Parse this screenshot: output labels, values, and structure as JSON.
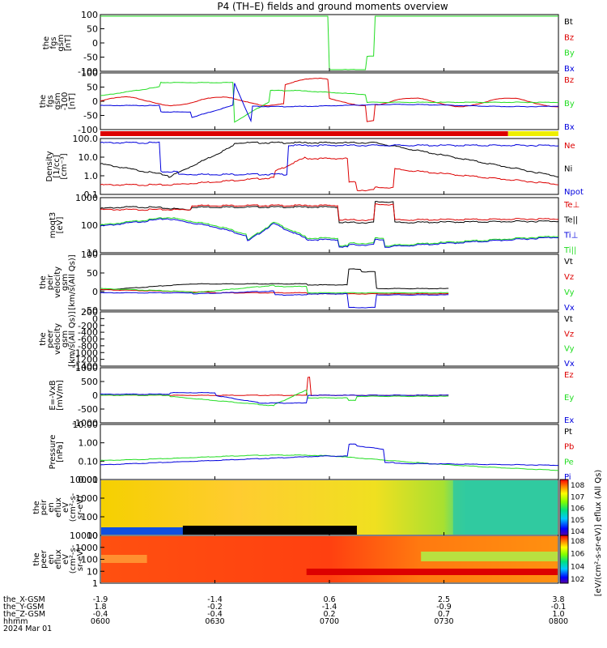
{
  "title": "P4 (TH–E) fields and ground moments overview",
  "colors": {
    "black": "#000000",
    "red": "#dd0000",
    "green": "#22dd22",
    "blue": "#0000dd",
    "yellow": "#eeee00",
    "gray": "#888888"
  },
  "chart_data": {
    "type": "line",
    "x_range": [
      "06:00",
      "08:00"
    ],
    "time_ticks": [
      "0600",
      "0630",
      "0700",
      "0730",
      "0800"
    ],
    "panels": [
      {
        "id": "p1",
        "ylabel": [
          "the",
          "fgs",
          "gsm",
          "[nT]"
        ],
        "ylim": [
          -100,
          100
        ],
        "ticks": [
          "100",
          "50",
          "0",
          "-50",
          "-100"
        ],
        "legend": [
          {
            "text": "Bt",
            "color": "black"
          },
          {
            "text": "Bz",
            "color": "red"
          },
          {
            "text": "By",
            "color": "green"
          },
          {
            "text": "Bx",
            "color": "blue"
          }
        ]
      },
      {
        "id": "p2",
        "ylabel": [
          "the",
          "fgs",
          "gsm",
          "-100",
          "[nT]"
        ],
        "ylim": [
          -120,
          120
        ],
        "ticks": [
          "100",
          "50",
          "0",
          "-50",
          "-100"
        ],
        "legend": [
          {
            "text": "Bz",
            "color": "red"
          },
          {
            "text": "By",
            "color": "green"
          },
          {
            "text": "Bx",
            "color": "blue"
          }
        ]
      },
      {
        "id": "p3",
        "ylabel": [
          "Density",
          "[1/cc]",
          "[cm^-3]"
        ],
        "ylim": [
          0.07,
          120
        ],
        "log": true,
        "ticks": [
          "100.0",
          "10.0",
          "1.0",
          "0.1"
        ],
        "legend": [
          {
            "text": "Ne",
            "color": "red"
          },
          {
            "text": "Ni",
            "color": "black"
          },
          {
            "text": "Npot",
            "color": "blue"
          }
        ]
      },
      {
        "id": "p4",
        "ylabel": [
          "moqt3",
          "[eV]"
        ],
        "ylim": [
          7,
          2000
        ],
        "log": true,
        "ticks": [
          "1000",
          "100",
          "10"
        ],
        "legend": [
          {
            "text": "Te⊥",
            "color": "red"
          },
          {
            "text": "Te||",
            "color": "black"
          },
          {
            "text": "Ti⊥",
            "color": "blue"
          },
          {
            "text": "Ti||",
            "color": "green"
          }
        ]
      },
      {
        "id": "p5",
        "ylabel": [
          "the",
          "peir",
          "velocity",
          "gsm",
          "[km/s(All Qs)]"
        ],
        "ylim": [
          0,
          100
        ],
        "ticks": [
          "100",
          "50",
          "0",
          "-50"
        ],
        "legend": [
          {
            "text": "Vt",
            "color": "black"
          },
          {
            "text": "Vz",
            "color": "red"
          },
          {
            "text": "Vy",
            "color": "green"
          },
          {
            "text": "Vx",
            "color": "blue"
          }
        ]
      },
      {
        "id": "p6",
        "ylabel": [
          "the",
          "peer",
          "velocity",
          "gsm",
          "[km/s(All Qs)]"
        ],
        "ylim": [
          -1400,
          200
        ],
        "ticks": [
          "200",
          "0",
          "-200",
          "-400",
          "-600",
          "-800",
          "-1000",
          "-1200",
          "-1400"
        ],
        "legend": [
          {
            "text": "Vt",
            "color": "black"
          },
          {
            "text": "Vz",
            "color": "red"
          },
          {
            "text": "Vy",
            "color": "green"
          },
          {
            "text": "Vx",
            "color": "blue"
          }
        ]
      },
      {
        "id": "p7",
        "ylabel": [
          "E=-VxB",
          "[mV/m]"
        ],
        "ylim": [
          -1500,
          1500
        ],
        "ticks": [
          "1000",
          "500",
          "0",
          "-500",
          "-1000"
        ],
        "legend": [
          {
            "text": "Ez",
            "color": "red"
          },
          {
            "text": "Ey",
            "color": "green"
          },
          {
            "text": "Ex",
            "color": "blue"
          }
        ]
      },
      {
        "id": "p8",
        "ylabel": [
          "Pressure",
          "[nPa]"
        ],
        "ylim": [
          0.005,
          20
        ],
        "log": true,
        "ticks": [
          "10.00",
          "1.00",
          "0.10",
          "0.01"
        ],
        "legend": [
          {
            "text": "Pt",
            "color": "black"
          },
          {
            "text": "Pb",
            "color": "red"
          },
          {
            "text": "Pe",
            "color": "green"
          },
          {
            "text": "Pi",
            "color": "blue"
          }
        ]
      },
      {
        "id": "p9",
        "ylabel": [
          "the",
          "peir",
          "en",
          "eflux",
          "eV",
          "(cm^2-s-",
          "sr-eV)"
        ],
        "ylim": [
          10,
          20000
        ],
        "log": true,
        "ticks": [
          "10000",
          "1000",
          "100",
          "10"
        ],
        "type": "heatmap"
      },
      {
        "id": "p10",
        "ylabel": [
          "the",
          "peer",
          "en",
          "eflux",
          "eV",
          "(cm^2-s-",
          "sr-eV)"
        ],
        "ylim": [
          3,
          20000
        ],
        "log": true,
        "ticks": [
          "10000",
          "1000",
          "100",
          "10",
          "1"
        ],
        "type": "heatmap"
      }
    ],
    "colorbar": {
      "ticks": [
        "10^8",
        "10^7",
        "10^6",
        "10^5",
        "10^4"
      ],
      "ticks2": [
        "10^8",
        "10^6",
        "10^4",
        "10^2"
      ],
      "label": "[eV/(cm^2-s-sr-eV)] eflux (All Qs)"
    },
    "ephemeris": {
      "rows": [
        {
          "label": "the_X-GSM",
          "values": [
            "-1.9",
            "-1.4",
            "0.6",
            "2.5",
            "3.8"
          ]
        },
        {
          "label": "the_Y-GSM",
          "values": [
            "1.8",
            "-0.2",
            "-1.4",
            "-0.9",
            "-0.1"
          ]
        },
        {
          "label": "the_Z-GSM",
          "values": [
            "-0.4",
            "-0.4",
            "0.2",
            "0.7",
            "1.0"
          ]
        },
        {
          "label": "hhmm",
          "values": [
            "0600",
            "0630",
            "0700",
            "0730",
            "0800"
          ]
        }
      ],
      "date": "2024 Mar 01"
    }
  }
}
